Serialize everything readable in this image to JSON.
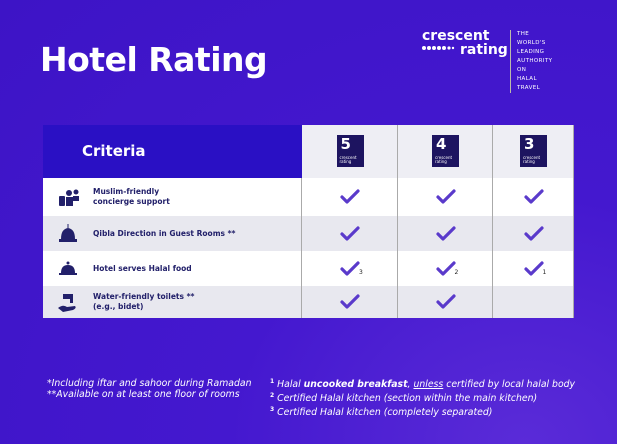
{
  "header": {
    "title": "Hotel Rating",
    "logo": {
      "word1": "crescent",
      "word2": "rating",
      "tagline": [
        "THE WORLD'S LEADING",
        "AUTHORITY ON",
        "HALAL TRAVEL"
      ]
    }
  },
  "table": {
    "criteria_header": "Criteria",
    "ratings": [
      {
        "number": "5",
        "brand": [
          "crescent",
          "rating"
        ]
      },
      {
        "number": "4",
        "brand": [
          "crescent",
          "rating"
        ]
      },
      {
        "number": "3",
        "brand": [
          "crescent",
          "rating"
        ]
      }
    ],
    "rows": [
      {
        "label": [
          "Muslim-friendly",
          "concierge support"
        ],
        "cells": [
          {
            "check": true
          },
          {
            "check": true
          },
          {
            "check": true
          }
        ]
      },
      {
        "label": [
          "Qibla Direction in Guest Rooms  **"
        ],
        "cells": [
          {
            "check": true
          },
          {
            "check": true
          },
          {
            "check": true
          }
        ]
      },
      {
        "label": [
          "Hotel serves Halal food"
        ],
        "cells": [
          {
            "check": true,
            "note": "3"
          },
          {
            "check": true,
            "note": "2"
          },
          {
            "check": true,
            "note": "1"
          }
        ]
      },
      {
        "label": [
          "Water-friendly toilets  **",
          "(e.g., bidet)"
        ],
        "cells": [
          {
            "check": true
          },
          {
            "check": true
          },
          {
            "check": false
          }
        ]
      }
    ]
  },
  "notes": {
    "left": [
      "*Including iftar and sahoor during Ramadan",
      "**Available on at least one floor of rooms"
    ],
    "right": [
      {
        "mark": "1",
        "parts": [
          "Halal ",
          "uncooked breakfast",
          ", ",
          "unless",
          " certified by local halal body"
        ]
      },
      {
        "mark": "2",
        "parts": [
          "Certified Halal kitchen (section within the main kitchen)"
        ]
      },
      {
        "mark": "3",
        "parts": [
          "Certified Halal kitchen (completely separated)"
        ]
      }
    ]
  }
}
